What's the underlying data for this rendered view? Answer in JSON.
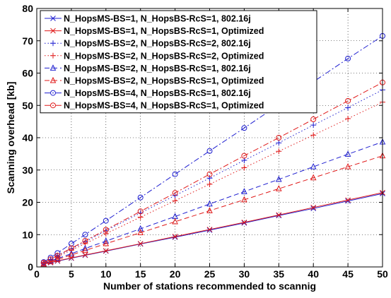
{
  "chart_data": {
    "type": "line",
    "title": "",
    "xlabel": "Number of stations recommended to scannig",
    "ylabel": "Scanning overhead [kb]",
    "xlim": [
      0,
      50
    ],
    "ylim": [
      0,
      80
    ],
    "xticks": [
      0,
      5,
      10,
      15,
      20,
      25,
      30,
      35,
      40,
      45,
      50
    ],
    "yticks": [
      0,
      10,
      20,
      30,
      40,
      50,
      60,
      70,
      80
    ],
    "grid": true,
    "legend_position": "top-left",
    "x": [
      1,
      2,
      3,
      5,
      7,
      10,
      15,
      20,
      25,
      30,
      35,
      40,
      45,
      50
    ],
    "series": [
      {
        "name": "N_HopsMS-BS=1, N_HopsBS-RcS=1, 802.16j",
        "color": "#1f1fd0",
        "dash": "solid",
        "marker": "x",
        "values": [
          0.9,
          1.3,
          1.8,
          2.7,
          3.6,
          4.9,
          7.1,
          9.2,
          11.4,
          13.6,
          15.9,
          18.1,
          20.4,
          22.7
        ]
      },
      {
        "name": "N_HopsMS-BS=1, N_HopsBS-RcS=1, Optimized",
        "color": "#e01a1a",
        "dash": "solid",
        "marker": "x",
        "values": [
          0.9,
          1.4,
          1.9,
          2.8,
          3.7,
          5.0,
          7.2,
          9.4,
          11.6,
          13.8,
          16.1,
          18.4,
          20.7,
          23.0
        ]
      },
      {
        "name": "N_HopsMS-BS=2, N_HopsBS-RcS=2, 802.16j",
        "color": "#1f1fd0",
        "dash": "dot",
        "marker": "+",
        "values": [
          1.2,
          2.3,
          3.4,
          5.6,
          7.8,
          11.2,
          16.7,
          22.1,
          27.5,
          33.0,
          38.4,
          43.9,
          49.3,
          54.8
        ]
      },
      {
        "name": "N_HopsMS-BS=2, N_HopsBS-RcS=2, Optimized",
        "color": "#e01a1a",
        "dash": "dot",
        "marker": "+",
        "values": [
          1.1,
          2.1,
          3.1,
          5.2,
          7.2,
          10.3,
          15.4,
          20.5,
          25.6,
          30.7,
          35.8,
          40.8,
          45.9,
          51.0
        ]
      },
      {
        "name": "N_HopsMS-BS=2, N_HopsBS-RcS=1, 802.16j",
        "color": "#1f1fd0",
        "dash": "dash",
        "marker": "triangle",
        "values": [
          1.0,
          1.8,
          2.6,
          4.1,
          5.7,
          8.0,
          11.8,
          15.6,
          19.5,
          23.3,
          27.1,
          31.0,
          34.9,
          38.7
        ]
      },
      {
        "name": "N_HopsMS-BS=2, N_HopsBS-RcS=1, Optimized",
        "color": "#e01a1a",
        "dash": "dash",
        "marker": "triangle",
        "values": [
          0.9,
          1.6,
          2.3,
          3.7,
          5.1,
          7.2,
          10.6,
          14.0,
          17.4,
          20.8,
          24.2,
          27.6,
          31.0,
          34.4
        ]
      },
      {
        "name": "N_HopsMS-BS=4, N_HopsBS-RcS=1, 802.16j",
        "color": "#1f1fd0",
        "dash": "dashdot",
        "marker": "circle",
        "values": [
          1.5,
          2.9,
          4.3,
          7.2,
          10.0,
          14.3,
          21.5,
          28.7,
          35.9,
          43.0,
          50.2,
          57.3,
          64.5,
          71.5
        ]
      },
      {
        "name": "N_HopsMS-BS=4, N_HopsBS-RcS=1, Optimized",
        "color": "#e01a1a",
        "dash": "dashdot",
        "marker": "circle",
        "values": [
          1.3,
          2.4,
          3.5,
          5.8,
          8.1,
          11.5,
          17.2,
          22.9,
          28.7,
          34.4,
          40.0,
          45.7,
          51.4,
          57.1
        ]
      }
    ]
  }
}
